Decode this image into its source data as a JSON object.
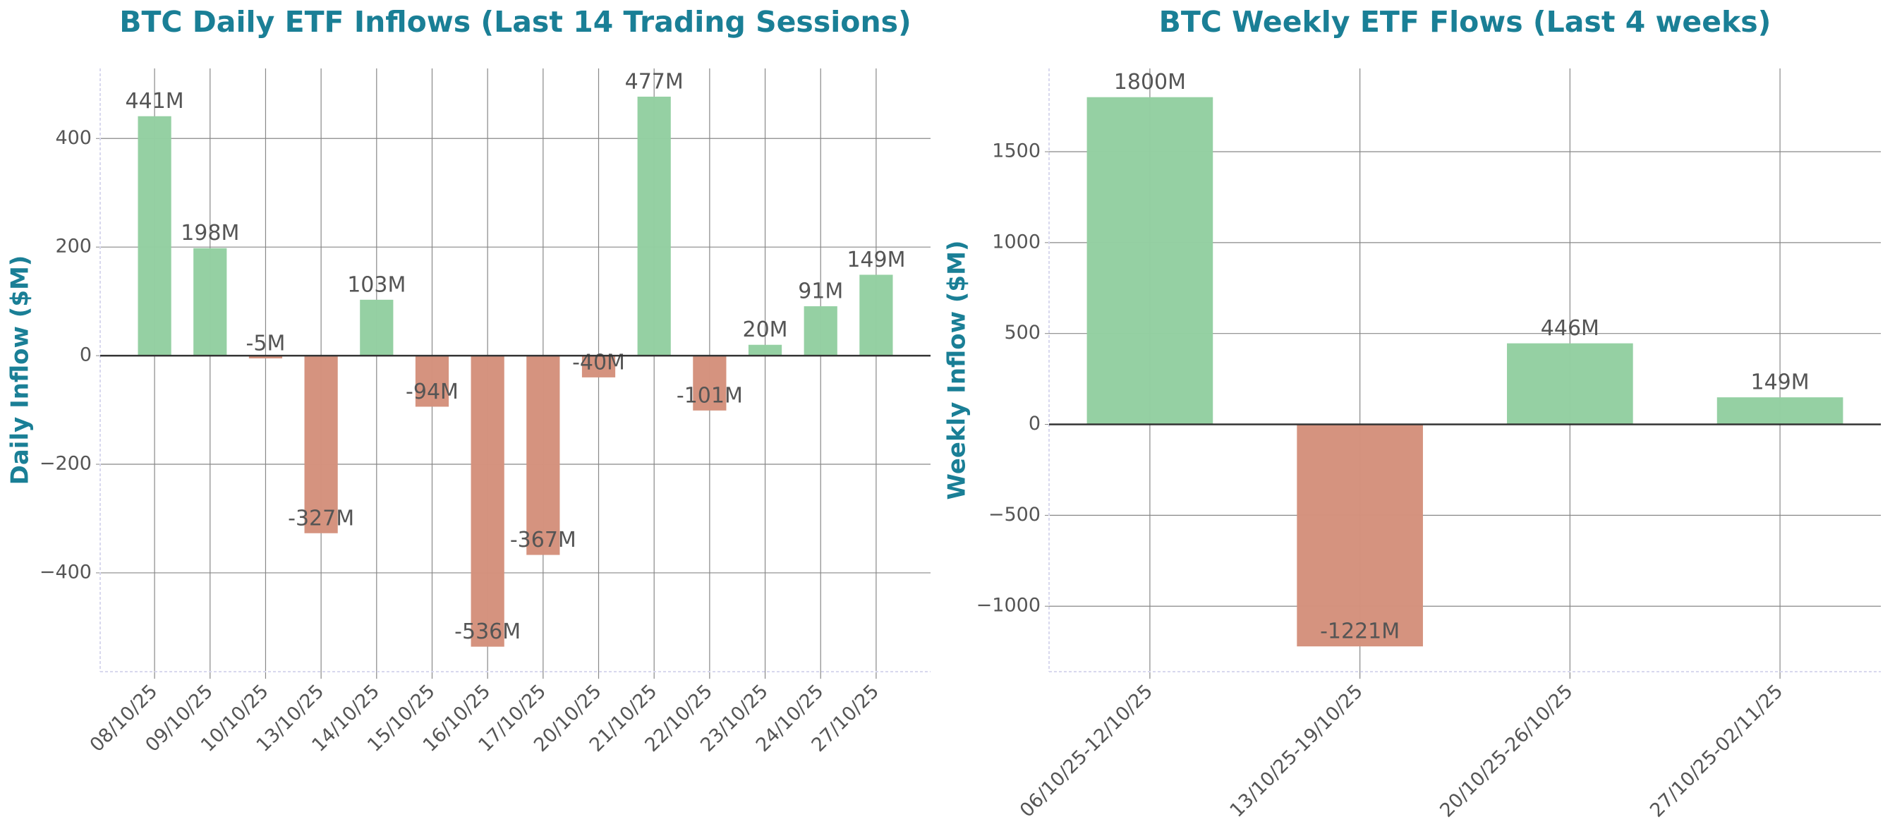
{
  "chart_data": [
    {
      "type": "bar",
      "title": "BTC Daily ETF Inflows (Last 14 Trading Sessions)",
      "y_label": "Daily Inflow ($M)",
      "categories": [
        "08/10/25",
        "09/10/25",
        "10/10/25",
        "13/10/25",
        "14/10/25",
        "15/10/25",
        "16/10/25",
        "17/10/25",
        "20/10/25",
        "21/10/25",
        "22/10/25",
        "23/10/25",
        "24/10/25",
        "27/10/25"
      ],
      "values": [
        441,
        198,
        -5,
        -327,
        103,
        -94,
        -536,
        -367,
        -40,
        477,
        -101,
        20,
        91,
        149
      ],
      "value_labels": [
        "441M",
        "198M",
        "-5M",
        "-327M",
        "103M",
        "-94M",
        "-536M",
        "-367M",
        "-40M",
        "477M",
        "-101M",
        "20M",
        "91M",
        "149M"
      ],
      "ylim": [
        -582,
        529
      ],
      "yticks": [
        {
          "value": -400,
          "label": "−400"
        },
        {
          "value": -200,
          "label": "−200"
        },
        0,
        200,
        400
      ],
      "color_positive": "#93cfa1",
      "color_negative": "#d4917c",
      "grid": true
    },
    {
      "type": "bar",
      "title": "BTC Weekly ETF Flows (Last 4 weeks)",
      "y_label": "Weekly Inflow ($M)",
      "categories": [
        "06/10/25-12/10/25",
        "13/10/25-19/10/25",
        "20/10/25-26/10/25",
        "27/10/25-02/11/25"
      ],
      "values": [
        1800,
        -1221,
        446,
        149
      ],
      "value_labels": [
        "1800M",
        "-1221M",
        "446M",
        "149M"
      ],
      "ylim": [
        -1360,
        1958
      ],
      "yticks": [
        {
          "value": -1000,
          "label": "−1000"
        },
        {
          "value": -500,
          "label": "−500"
        },
        0,
        500,
        1000,
        1500
      ],
      "color_positive": "#93cfa1",
      "color_negative": "#d4917c",
      "grid": true
    }
  ]
}
